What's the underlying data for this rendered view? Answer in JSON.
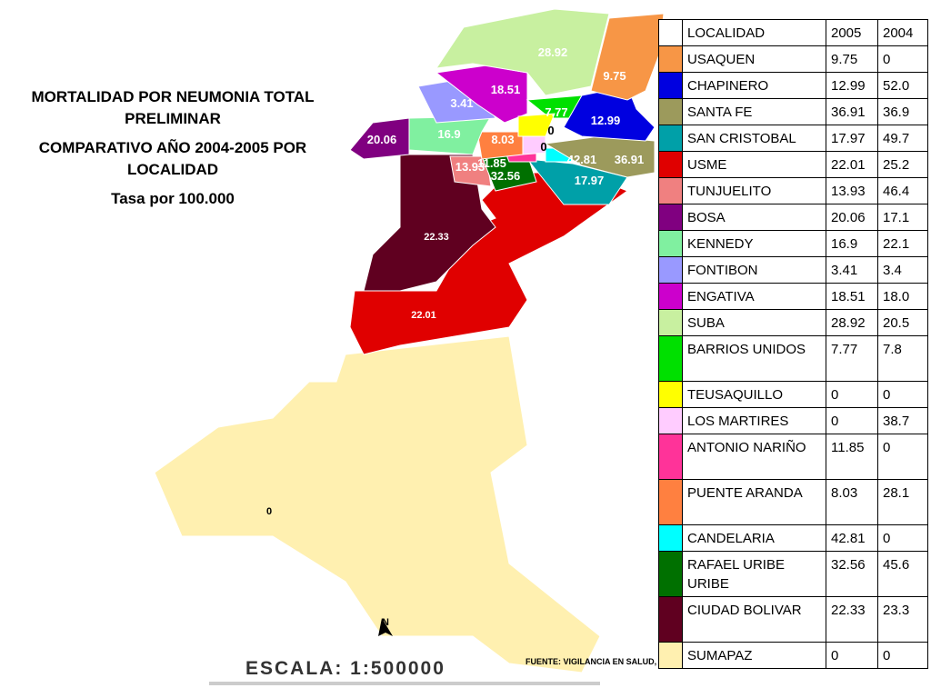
{
  "title": {
    "line1": "MORTALIDAD POR NEUMONIA TOTAL PRELIMINAR",
    "line2": "COMPARATIVO AÑO 2004-2005 POR LOCALIDAD",
    "line3": "Tasa por 100.000"
  },
  "table": {
    "header": [
      "LOCALIDAD",
      "2005",
      "2004"
    ],
    "rows": [
      {
        "color": "#f79646",
        "name": "USAQUEN",
        "v2005": "9.75",
        "v2004": "0"
      },
      {
        "color": "#0000e0",
        "name": "CHAPINERO",
        "v2005": "12.99",
        "v2004": "52.0"
      },
      {
        "color": "#9c9a5c",
        "name": "SANTA FE",
        "v2005": "36.91",
        "v2004": "36.9"
      },
      {
        "color": "#00a0a8",
        "name": "SAN CRISTOBAL",
        "v2005": "17.97",
        "v2004": "49.7"
      },
      {
        "color": "#e00000",
        "name": "USME",
        "v2005": "22.01",
        "v2004": "25.2"
      },
      {
        "color": "#f08080",
        "name": "TUNJUELITO",
        "v2005": "13.93",
        "v2004": "46.4"
      },
      {
        "color": "#800080",
        "name": "BOSA",
        "v2005": "20.06",
        "v2004": "17.1"
      },
      {
        "color": "#80f0a0",
        "name": "KENNEDY",
        "v2005": "16.9",
        "v2004": "22.1"
      },
      {
        "color": "#9999ff",
        "name": "FONTIBON",
        "v2005": "3.41",
        "v2004": "3.4"
      },
      {
        "color": "#cc00cc",
        "name": "ENGATIVA",
        "v2005": "18.51",
        "v2004": "18.0"
      },
      {
        "color": "#c8f0a0",
        "name": "SUBA",
        "v2005": "28.92",
        "v2004": "20.5"
      },
      {
        "color": "#00e000",
        "name": "BARRIOS UNIDOS",
        "v2005": "7.77",
        "v2004": "7.8"
      },
      {
        "color": "#ffff00",
        "name": "TEUSAQUILLO",
        "v2005": "0",
        "v2004": "0"
      },
      {
        "color": "#ffccff",
        "name": "LOS MARTIRES",
        "v2005": "0",
        "v2004": "38.7"
      },
      {
        "color": "#ff3399",
        "name": "ANTONIO NARIÑO",
        "v2005": "11.85",
        "v2004": "0"
      },
      {
        "color": "#ff8040",
        "name": "PUENTE ARANDA",
        "v2005": "8.03",
        "v2004": "28.1"
      },
      {
        "color": "#00ffff",
        "name": "CANDELARIA",
        "v2005": "42.81",
        "v2004": "0"
      },
      {
        "color": "#007000",
        "name": "RAFAEL URIBE URIBE",
        "v2005": "32.56",
        "v2004": "45.6"
      },
      {
        "color": "#600020",
        "name": "CIUDAD  BOLIVAR",
        "v2005": "22.33",
        "v2004": "23.3"
      },
      {
        "color": "#fff0b0",
        "name": "SUMAPAZ",
        "v2005": "0",
        "v2004": "0"
      }
    ]
  },
  "map": {
    "labels": [
      "28.92",
      "9.75",
      "18.51",
      "3.41",
      "7.77",
      "12.99",
      "20.06",
      "16.9",
      "8.03",
      "0",
      "0",
      "13.93",
      "11.85",
      "42.81",
      "36.91",
      "32.56",
      "17.97",
      "22.33",
      "22.01",
      "0"
    ],
    "north": "N",
    "scale": "ESCALA: 1:500000",
    "source": "FUENTE: VIGILANCIA EN SALUD, SALA SITUACIONAL ERA"
  }
}
